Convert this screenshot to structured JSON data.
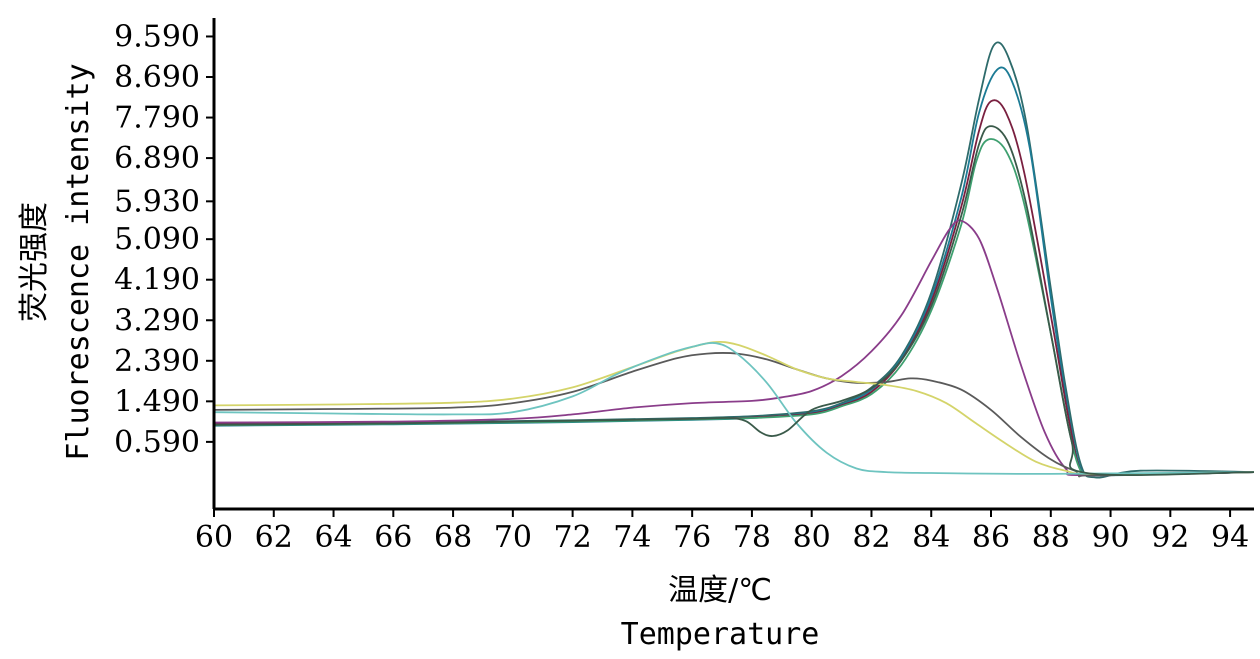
{
  "chart_data": {
    "type": "line",
    "title": "",
    "xlabel_cn": "温度/℃",
    "xlabel_en": "Temperature",
    "ylabel_cn": "荧光强度",
    "ylabel_en": "Fluorescence intensity",
    "xlim": [
      60,
      94.8
    ],
    "ylim": [
      -0.9,
      10.0
    ],
    "x_ticks": [
      60,
      62,
      64,
      66,
      68,
      70,
      72,
      74,
      76,
      78,
      80,
      82,
      84,
      86,
      88,
      90,
      92,
      94
    ],
    "y_tick_values": [
      0.59,
      1.49,
      2.39,
      3.29,
      4.19,
      5.09,
      5.93,
      6.89,
      7.79,
      8.69,
      9.59
    ],
    "y_tick_labels": [
      "0.590",
      "1.490",
      "2.390",
      "3.290",
      "4.190",
      "5.090",
      "5.930",
      "6.890",
      "7.790",
      "8.690",
      "9.590"
    ],
    "grid": false,
    "series": [
      {
        "color": "#2e6b6b",
        "points": [
          [
            60,
            1.0
          ],
          [
            66,
            1.02
          ],
          [
            72,
            1.07
          ],
          [
            76,
            1.12
          ],
          [
            78,
            1.16
          ],
          [
            80,
            1.27
          ],
          [
            81,
            1.45
          ],
          [
            82,
            1.8
          ],
          [
            83,
            2.5
          ],
          [
            84,
            3.9
          ],
          [
            85,
            6.3
          ],
          [
            85.6,
            8.2
          ],
          [
            86.1,
            9.4
          ],
          [
            86.6,
            9.1
          ],
          [
            87.2,
            7.6
          ],
          [
            88,
            4.0
          ],
          [
            88.5,
            1.8
          ],
          [
            89,
            0.1
          ],
          [
            89.5,
            -0.2
          ],
          [
            91,
            -0.05
          ],
          [
            94.8,
            -0.08
          ]
        ]
      },
      {
        "color": "#1c7b95",
        "points": [
          [
            60,
            0.95
          ],
          [
            66,
            0.98
          ],
          [
            72,
            1.03
          ],
          [
            76,
            1.08
          ],
          [
            78,
            1.12
          ],
          [
            80,
            1.24
          ],
          [
            81,
            1.42
          ],
          [
            82,
            1.75
          ],
          [
            83,
            2.45
          ],
          [
            84,
            3.8
          ],
          [
            85,
            6.0
          ],
          [
            85.6,
            7.9
          ],
          [
            86.2,
            8.85
          ],
          [
            86.7,
            8.6
          ],
          [
            87.3,
            7.1
          ],
          [
            88,
            3.8
          ],
          [
            88.6,
            1.2
          ],
          [
            89,
            0.0
          ],
          [
            89.5,
            -0.15
          ],
          [
            94.8,
            -0.08
          ]
        ]
      },
      {
        "color": "#7a2040",
        "points": [
          [
            60,
            0.98
          ],
          [
            66,
            1.0
          ],
          [
            72,
            1.05
          ],
          [
            76,
            1.1
          ],
          [
            78,
            1.13
          ],
          [
            80,
            1.22
          ],
          [
            81,
            1.4
          ],
          [
            82,
            1.7
          ],
          [
            83,
            2.4
          ],
          [
            84,
            3.7
          ],
          [
            85,
            5.8
          ],
          [
            85.6,
            7.5
          ],
          [
            86.0,
            8.15
          ],
          [
            86.5,
            7.9
          ],
          [
            87.1,
            6.6
          ],
          [
            88,
            3.4
          ],
          [
            88.6,
            1.1
          ],
          [
            89,
            -0.05
          ],
          [
            89.5,
            -0.15
          ],
          [
            94.8,
            -0.08
          ]
        ]
      },
      {
        "color": "#3fa070",
        "points": [
          [
            60,
            0.96
          ],
          [
            66,
            0.99
          ],
          [
            72,
            1.04
          ],
          [
            76,
            1.09
          ],
          [
            78,
            1.12
          ],
          [
            80,
            1.2
          ],
          [
            81,
            1.38
          ],
          [
            82,
            1.65
          ],
          [
            83,
            2.3
          ],
          [
            84,
            3.5
          ],
          [
            85,
            5.4
          ],
          [
            85.5,
            6.8
          ],
          [
            85.9,
            7.3
          ],
          [
            86.5,
            7.05
          ],
          [
            87.1,
            5.9
          ],
          [
            88,
            3.0
          ],
          [
            88.6,
            0.9
          ],
          [
            89,
            -0.05
          ],
          [
            89.5,
            -0.15
          ],
          [
            94.8,
            -0.08
          ]
        ]
      },
      {
        "color": "#8a3d8a",
        "points": [
          [
            60,
            1.02
          ],
          [
            66,
            1.04
          ],
          [
            70,
            1.1
          ],
          [
            72,
            1.2
          ],
          [
            74,
            1.35
          ],
          [
            76,
            1.45
          ],
          [
            78,
            1.5
          ],
          [
            79,
            1.58
          ],
          [
            80,
            1.72
          ],
          [
            81,
            2.05
          ],
          [
            82,
            2.6
          ],
          [
            83,
            3.4
          ],
          [
            84,
            4.6
          ],
          [
            84.6,
            5.3
          ],
          [
            85.0,
            5.5
          ],
          [
            85.6,
            5.1
          ],
          [
            86.2,
            4.0
          ],
          [
            87,
            2.3
          ],
          [
            87.8,
            0.8
          ],
          [
            88.5,
            0.0
          ],
          [
            89.2,
            -0.15
          ],
          [
            94.8,
            -0.08
          ]
        ]
      },
      {
        "color": "#5a5a5a",
        "points": [
          [
            60,
            1.3
          ],
          [
            64,
            1.32
          ],
          [
            68,
            1.35
          ],
          [
            70,
            1.45
          ],
          [
            72,
            1.7
          ],
          [
            74,
            2.15
          ],
          [
            75.5,
            2.45
          ],
          [
            76.5,
            2.55
          ],
          [
            77.5,
            2.55
          ],
          [
            78.5,
            2.42
          ],
          [
            79.5,
            2.2
          ],
          [
            80.5,
            2.0
          ],
          [
            81.5,
            1.9
          ],
          [
            82.5,
            1.92
          ],
          [
            83.3,
            2.0
          ],
          [
            84,
            1.95
          ],
          [
            85,
            1.75
          ],
          [
            86,
            1.3
          ],
          [
            87,
            0.7
          ],
          [
            88,
            0.2
          ],
          [
            88.8,
            -0.05
          ],
          [
            89.5,
            -0.15
          ],
          [
            94.8,
            -0.08
          ]
        ]
      },
      {
        "color": "#d4d46a",
        "points": [
          [
            60,
            1.4
          ],
          [
            64,
            1.42
          ],
          [
            68,
            1.46
          ],
          [
            70,
            1.55
          ],
          [
            72,
            1.8
          ],
          [
            74,
            2.25
          ],
          [
            75.5,
            2.6
          ],
          [
            76.7,
            2.8
          ],
          [
            77.5,
            2.75
          ],
          [
            78.5,
            2.5
          ],
          [
            79.5,
            2.2
          ],
          [
            80.5,
            2.0
          ],
          [
            81.5,
            1.92
          ],
          [
            82.5,
            1.85
          ],
          [
            83.5,
            1.72
          ],
          [
            84.5,
            1.45
          ],
          [
            85.5,
            1.0
          ],
          [
            86.5,
            0.55
          ],
          [
            87.5,
            0.15
          ],
          [
            88.5,
            -0.05
          ],
          [
            89.5,
            -0.12
          ],
          [
            94.8,
            -0.08
          ]
        ]
      },
      {
        "color": "#6ec4c0",
        "points": [
          [
            60,
            1.25
          ],
          [
            64,
            1.22
          ],
          [
            68,
            1.2
          ],
          [
            70,
            1.25
          ],
          [
            72,
            1.6
          ],
          [
            73.5,
            2.1
          ],
          [
            75,
            2.5
          ],
          [
            76,
            2.7
          ],
          [
            76.8,
            2.78
          ],
          [
            77.5,
            2.55
          ],
          [
            78.5,
            1.9
          ],
          [
            79.5,
            1.0
          ],
          [
            80.5,
            0.35
          ],
          [
            81.5,
            0.0
          ],
          [
            82.5,
            -0.08
          ],
          [
            84,
            -0.1
          ],
          [
            88,
            -0.12
          ],
          [
            94.8,
            -0.08
          ]
        ]
      },
      {
        "color": "#3a5a4a",
        "points": [
          [
            60,
            0.97
          ],
          [
            66,
            1.0
          ],
          [
            72,
            1.06
          ],
          [
            76,
            1.1
          ],
          [
            77.2,
            1.12
          ],
          [
            77.8,
            1.05
          ],
          [
            78.3,
            0.8
          ],
          [
            78.7,
            0.72
          ],
          [
            79.2,
            0.85
          ],
          [
            80,
            1.3
          ],
          [
            81,
            1.5
          ],
          [
            82,
            1.78
          ],
          [
            83,
            2.4
          ],
          [
            84,
            3.6
          ],
          [
            85,
            5.6
          ],
          [
            85.6,
            7.2
          ],
          [
            86.0,
            7.6
          ],
          [
            86.6,
            7.2
          ],
          [
            87.2,
            5.8
          ],
          [
            88,
            3.0
          ],
          [
            88.7,
            0.6
          ],
          [
            89.2,
            -0.1
          ],
          [
            94.8,
            -0.08
          ]
        ]
      }
    ]
  }
}
